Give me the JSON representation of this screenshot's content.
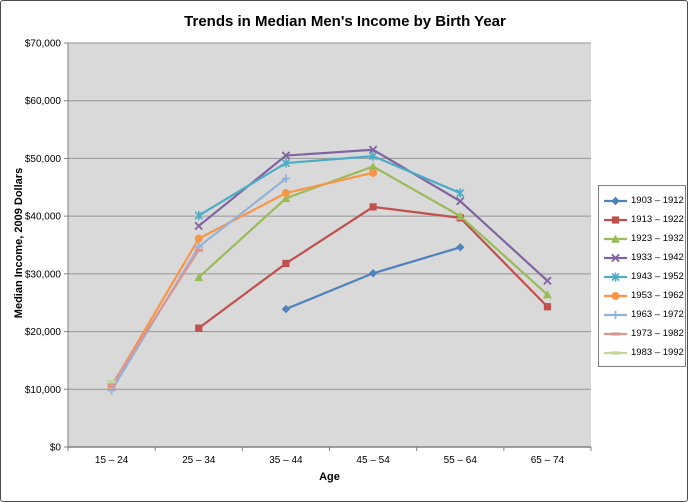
{
  "chart_data": {
    "type": "line",
    "title": "Trends in Median Men's Income by Birth Year",
    "xlabel": "Age",
    "ylabel": "Median Income, 2009 Dollars",
    "categories": [
      "15 – 24",
      "25 – 34",
      "35 – 44",
      "45 – 54",
      "55 – 64",
      "65 – 74"
    ],
    "ylim": [
      0,
      70000
    ],
    "ytick_step": 10000,
    "ytick_labels": [
      "$0",
      "$10,000",
      "$20,000",
      "$30,000",
      "$40,000",
      "$50,000",
      "$60,000",
      "$70,000"
    ],
    "grid": true,
    "legend_position": "right",
    "series": [
      {
        "name": "1903 – 1912",
        "color": "#4F81BD",
        "marker": "diamond",
        "values": [
          null,
          null,
          23900,
          30100,
          34600,
          null
        ]
      },
      {
        "name": "1913 – 1922",
        "color": "#C0504D",
        "marker": "square",
        "values": [
          null,
          20600,
          31800,
          41600,
          39700,
          24300
        ]
      },
      {
        "name": "1923 – 1932",
        "color": "#9BBB59",
        "marker": "triangle",
        "values": [
          null,
          29400,
          43100,
          48600,
          40000,
          26400
        ]
      },
      {
        "name": "1933 – 1942",
        "color": "#8064A2",
        "marker": "x",
        "values": [
          null,
          38300,
          50500,
          51500,
          42600,
          28800
        ]
      },
      {
        "name": "1943 – 1952",
        "color": "#4BACC6",
        "marker": "star",
        "values": [
          null,
          40100,
          49200,
          50400,
          44000,
          null
        ]
      },
      {
        "name": "1953 – 1962",
        "color": "#F79646",
        "marker": "circle",
        "values": [
          10500,
          36100,
          44000,
          47500,
          null,
          null
        ]
      },
      {
        "name": "1963 – 1972",
        "color": "#95B3D7",
        "marker": "plus",
        "values": [
          9800,
          34700,
          46500,
          null,
          null,
          null
        ]
      },
      {
        "name": "1973 – 1982",
        "color": "#D99694",
        "marker": "dash",
        "values": [
          10700,
          34100,
          null,
          null,
          null,
          null
        ]
      },
      {
        "name": "1983 – 1992",
        "color": "#C3D69B",
        "marker": "dash",
        "values": [
          11300,
          null,
          null,
          null,
          null,
          null
        ]
      }
    ],
    "style": {
      "plot_bg": "#D9D9D9",
      "gridline_color": "#959595",
      "axis_color": "#808080",
      "line_width": 2.2
    }
  }
}
